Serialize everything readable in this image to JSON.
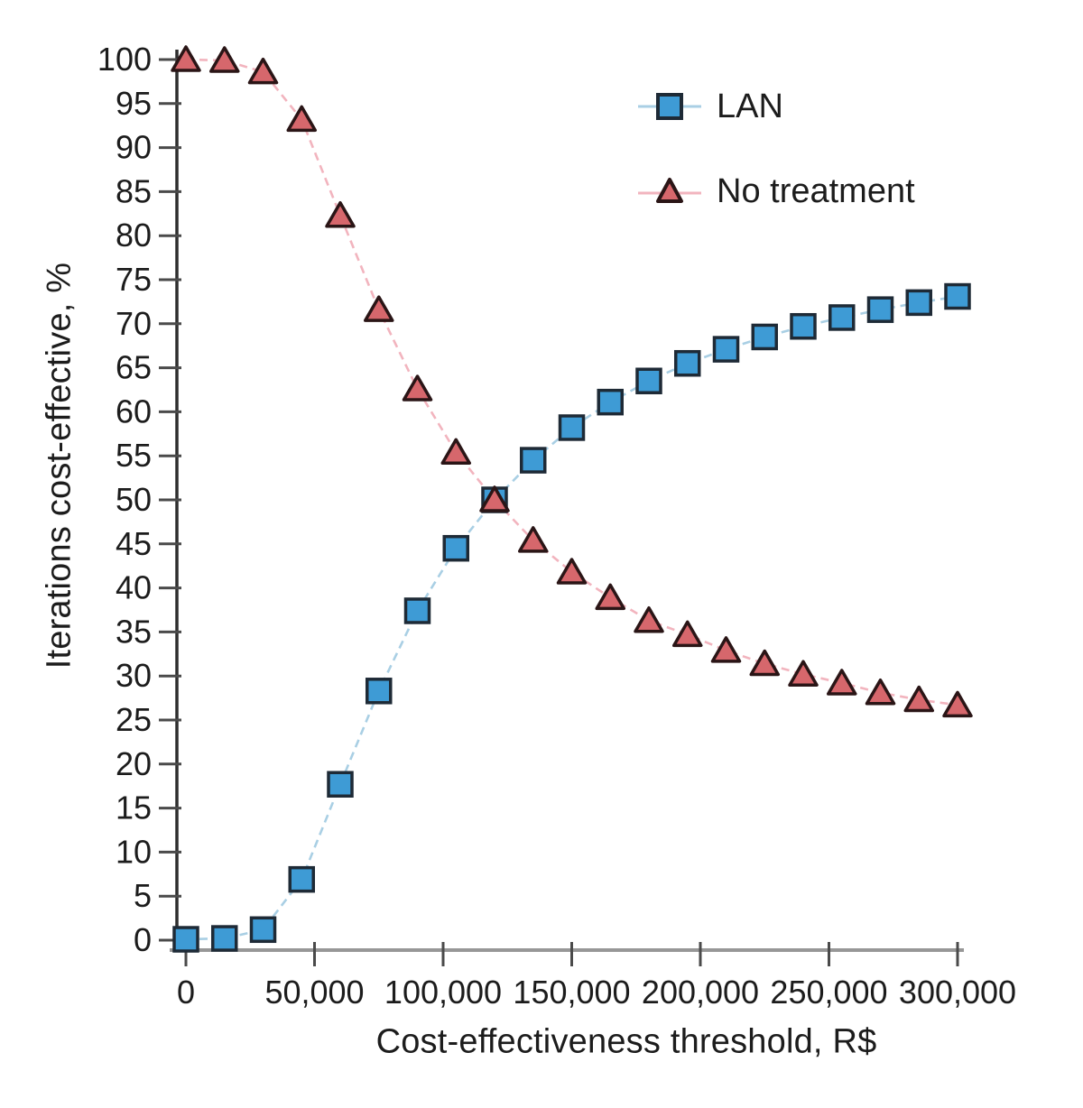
{
  "chart_data": {
    "type": "line",
    "title": "",
    "xlabel": "Cost-effectiveness threshold, R$",
    "ylabel": "Iterations cost-effective, %",
    "xlim": [
      0,
      300000
    ],
    "ylim": [
      0,
      100
    ],
    "grid": false,
    "legend_position": "inside-top-right",
    "x": [
      0,
      15000,
      30000,
      45000,
      60000,
      75000,
      90000,
      105000,
      120000,
      135000,
      150000,
      165000,
      180000,
      195000,
      210000,
      225000,
      240000,
      255000,
      270000,
      285000,
      300000
    ],
    "x_tick_values": [
      0,
      50000,
      100000,
      150000,
      200000,
      250000,
      300000
    ],
    "x_tick_labels": [
      "0",
      "50,000",
      "100,000",
      "150,000",
      "200,000",
      "250,000",
      "300,000"
    ],
    "y_tick_values": [
      0,
      5,
      10,
      15,
      20,
      25,
      30,
      35,
      40,
      45,
      50,
      55,
      60,
      65,
      70,
      75,
      80,
      85,
      90,
      95,
      100
    ],
    "series": [
      {
        "name": "LAN",
        "marker": "square",
        "fill": "#3E9BD5",
        "edge": "#1e2a36",
        "line_color": "#A9CFE4",
        "values": [
          0.1,
          0.2,
          1.2,
          6.9,
          17.7,
          28.3,
          37.4,
          44.5,
          50.0,
          54.5,
          58.2,
          61.1,
          63.5,
          65.5,
          67.1,
          68.5,
          69.7,
          70.7,
          71.6,
          72.4,
          73.1
        ]
      },
      {
        "name": "No treatment",
        "marker": "triangle",
        "fill": "#D6676C",
        "edge": "#2a1516",
        "line_color": "#F2B4BE",
        "values": [
          100,
          99.9,
          98.6,
          93.2,
          82.3,
          71.6,
          62.6,
          55.4,
          50.0,
          45.4,
          41.8,
          38.9,
          36.3,
          34.7,
          32.9,
          31.4,
          30.2,
          29.2,
          28.1,
          27.3,
          26.7
        ]
      }
    ],
    "colors": {
      "y_axis": "#2e2e2e",
      "x_axis": "#979797",
      "tick": "#4a4a4a",
      "text": "#1c1c1c"
    }
  }
}
